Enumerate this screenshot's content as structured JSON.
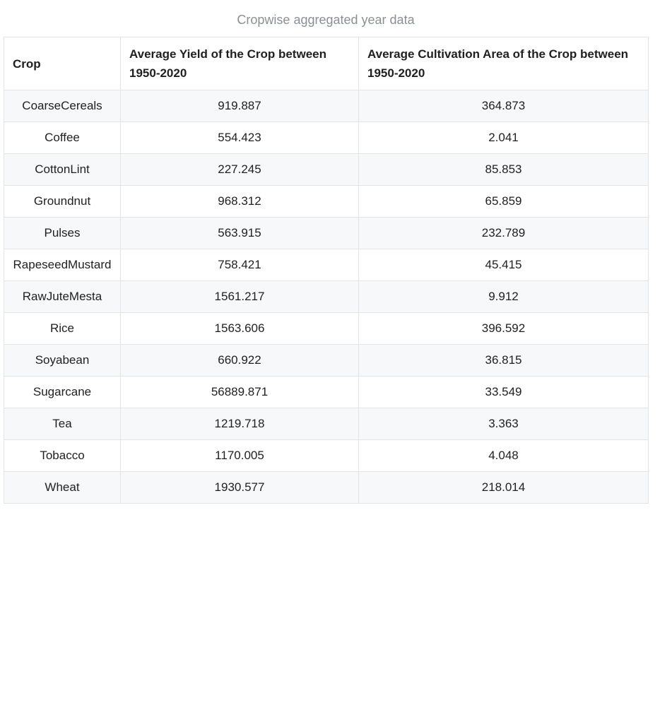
{
  "caption": "Cropwise aggregated year data",
  "table": {
    "headers": [
      "Crop",
      "Average Yield of the Crop between 1950-2020",
      "Average Cultivation Area of the Crop between 1950-2020"
    ],
    "rows": [
      [
        "CoarseCereals",
        "919.887",
        "364.873"
      ],
      [
        "Coffee",
        "554.423",
        "2.041"
      ],
      [
        "CottonLint",
        "227.245",
        "85.853"
      ],
      [
        "Groundnut",
        "968.312",
        "65.859"
      ],
      [
        "Pulses",
        "563.915",
        "232.789"
      ],
      [
        "RapeseedMustard",
        "758.421",
        "45.415"
      ],
      [
        "RawJuteMesta",
        "1561.217",
        "9.912"
      ],
      [
        "Rice",
        "1563.606",
        "396.592"
      ],
      [
        "Soyabean",
        "660.922",
        "36.815"
      ],
      [
        "Sugarcane",
        "56889.871",
        "33.549"
      ],
      [
        "Tea",
        "1219.718",
        "3.363"
      ],
      [
        "Tobacco",
        "1170.005",
        "4.048"
      ],
      [
        "Wheat",
        "1930.577",
        "218.014"
      ]
    ]
  }
}
